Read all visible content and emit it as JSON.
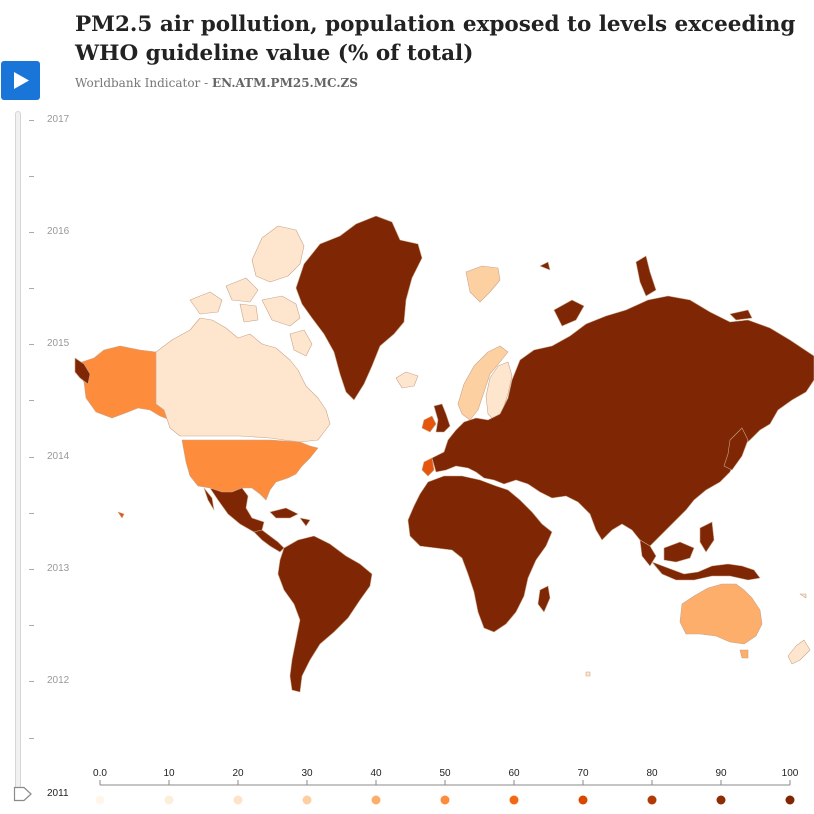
{
  "header": {
    "title": "PM2.5 air pollution, population exposed to levels exceeding WHO guideline value (% of total)",
    "subtitle_prefix": "Worldbank Indicator - ",
    "subtitle_code": "EN.ATM.PM25.MC.ZS"
  },
  "controls": {
    "play_icon": "play-icon"
  },
  "timeline": {
    "years": [
      "2017",
      "2016",
      "2015",
      "2014",
      "2013",
      "2012"
    ],
    "current_year": "2011"
  },
  "legend": {
    "ticks": [
      "0.0",
      "10",
      "20",
      "30",
      "40",
      "50",
      "60",
      "70",
      "80",
      "90",
      "100"
    ],
    "colors": [
      "#fff5eb",
      "#feeddc",
      "#fee3c8",
      "#fdd0a2",
      "#fdae6b",
      "#fd8d3c",
      "#f16913",
      "#d94801",
      "#b13a04",
      "#8c2d04",
      "#7f2704"
    ]
  },
  "map": {
    "scale": "0 to 100 (% of total)",
    "colors": {
      "ocean": "#ffffff",
      "border": "#c9a58a",
      "very_low": "#fee6ce",
      "low": "#fdd0a2",
      "mid": "#fdae6b",
      "midhigh": "#fd8d3c",
      "high": "#e6550d",
      "full": "#7f2704"
    },
    "regions": [
      {
        "name": "Alaska",
        "level": "midhigh"
      },
      {
        "name": "Canada",
        "level": "very_low"
      },
      {
        "name": "Greenland",
        "level": "full"
      },
      {
        "name": "United States",
        "level": "midhigh"
      },
      {
        "name": "Mexico",
        "level": "full"
      },
      {
        "name": "Central America",
        "level": "full"
      },
      {
        "name": "South America",
        "level": "full"
      },
      {
        "name": "Iceland",
        "level": "very_low"
      },
      {
        "name": "Scandinavia",
        "level": "low"
      },
      {
        "name": "Finland",
        "level": "very_low"
      },
      {
        "name": "Ireland",
        "level": "high"
      },
      {
        "name": "Great Britain",
        "level": "full"
      },
      {
        "name": "Portugal",
        "level": "high"
      },
      {
        "name": "Europe",
        "level": "full"
      },
      {
        "name": "Africa",
        "level": "full"
      },
      {
        "name": "Madagascar",
        "level": "full"
      },
      {
        "name": "Russia",
        "level": "full"
      },
      {
        "name": "Asia",
        "level": "full"
      },
      {
        "name": "Japan",
        "level": "full"
      },
      {
        "name": "Southeast Asia",
        "level": "full"
      },
      {
        "name": "Indonesia",
        "level": "full"
      },
      {
        "name": "Australia",
        "level": "mid"
      },
      {
        "name": "Tasmania",
        "level": "mid"
      },
      {
        "name": "New Zealand",
        "level": "very_low"
      },
      {
        "name": "Svalbard",
        "level": "low"
      }
    ]
  }
}
